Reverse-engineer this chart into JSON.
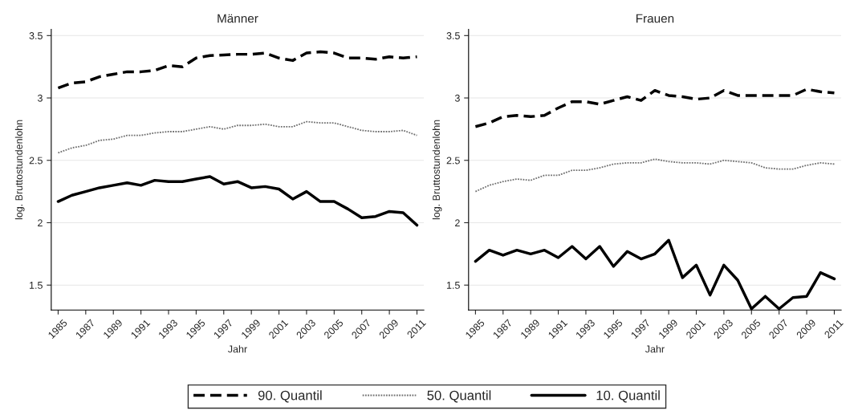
{
  "chart_data": [
    {
      "type": "line",
      "title": "Männer",
      "xlabel": "Jahr",
      "ylabel": "log. Bruttostundenlohn",
      "x": [
        1985,
        1986,
        1987,
        1988,
        1989,
        1990,
        1991,
        1992,
        1993,
        1994,
        1995,
        1996,
        1997,
        1998,
        1999,
        2000,
        2001,
        2002,
        2003,
        2004,
        2005,
        2006,
        2007,
        2008,
        2009,
        2010,
        2011
      ],
      "xlim": [
        1984.5,
        2011.5
      ],
      "xticks": [
        1985,
        1987,
        1989,
        1991,
        1993,
        1995,
        1997,
        1999,
        2001,
        2003,
        2005,
        2007,
        2009,
        2011
      ],
      "ylim": [
        1.3,
        3.55
      ],
      "yticks": [
        1.5,
        2,
        2.5,
        3,
        3.5
      ],
      "grid": "y",
      "legend": "bottom",
      "series": [
        {
          "name": "90. Quantil",
          "color": "#000000",
          "line_style": "dashed",
          "values": [
            3.08,
            3.12,
            3.13,
            3.17,
            3.19,
            3.21,
            3.21,
            3.22,
            3.26,
            3.25,
            3.32,
            3.34,
            3.345,
            3.35,
            3.35,
            3.36,
            3.32,
            3.3,
            3.36,
            3.37,
            3.36,
            3.32,
            3.32,
            3.31,
            3.33,
            3.32,
            3.33
          ]
        },
        {
          "name": "50. Quantil",
          "color": "#707070",
          "line_style": "dotted",
          "values": [
            2.56,
            2.6,
            2.62,
            2.66,
            2.67,
            2.7,
            2.7,
            2.72,
            2.73,
            2.73,
            2.75,
            2.77,
            2.75,
            2.78,
            2.78,
            2.79,
            2.77,
            2.77,
            2.81,
            2.8,
            2.8,
            2.77,
            2.74,
            2.73,
            2.73,
            2.74,
            2.7
          ]
        },
        {
          "name": "10. Quantil",
          "color": "#000000",
          "line_style": "solid",
          "values": [
            2.17,
            2.22,
            2.25,
            2.28,
            2.3,
            2.32,
            2.3,
            2.34,
            2.33,
            2.33,
            2.35,
            2.37,
            2.31,
            2.33,
            2.28,
            2.29,
            2.27,
            2.19,
            2.25,
            2.17,
            2.17,
            2.11,
            2.04,
            2.05,
            2.09,
            2.08,
            1.98
          ]
        }
      ]
    },
    {
      "type": "line",
      "title": "Frauen",
      "xlabel": "Jahr",
      "ylabel": "log. Bruttostundenlohn",
      "x": [
        1985,
        1986,
        1987,
        1988,
        1989,
        1990,
        1991,
        1992,
        1993,
        1994,
        1995,
        1996,
        1997,
        1998,
        1999,
        2000,
        2001,
        2002,
        2003,
        2004,
        2005,
        2006,
        2007,
        2008,
        2009,
        2010,
        2011
      ],
      "xlim": [
        1984.5,
        2011.5
      ],
      "xticks": [
        1985,
        1987,
        1989,
        1991,
        1993,
        1995,
        1997,
        1999,
        2001,
        2003,
        2005,
        2007,
        2009,
        2011
      ],
      "ylim": [
        1.3,
        3.55
      ],
      "yticks": [
        1.5,
        2,
        2.5,
        3,
        3.5
      ],
      "grid": "y",
      "series": [
        {
          "color": "#000000",
          "line_style": "dashed",
          "values": [
            2.77,
            2.8,
            2.85,
            2.86,
            2.85,
            2.86,
            2.92,
            2.97,
            2.97,
            2.95,
            2.98,
            3.01,
            2.98,
            3.06,
            3.02,
            3.01,
            2.99,
            3.0,
            3.06,
            3.02,
            3.02,
            3.02,
            3.02,
            3.02,
            3.07,
            3.05,
            3.04
          ]
        },
        {
          "color": "#707070",
          "line_style": "dotted",
          "values": [
            2.25,
            2.3,
            2.33,
            2.35,
            2.34,
            2.38,
            2.38,
            2.42,
            2.42,
            2.44,
            2.47,
            2.48,
            2.48,
            2.51,
            2.49,
            2.48,
            2.48,
            2.47,
            2.5,
            2.49,
            2.48,
            2.44,
            2.43,
            2.43,
            2.46,
            2.48,
            2.47
          ]
        },
        {
          "color": "#000000",
          "line_style": "solid",
          "values": [
            1.69,
            1.78,
            1.74,
            1.78,
            1.75,
            1.78,
            1.72,
            1.81,
            1.71,
            1.81,
            1.65,
            1.77,
            1.71,
            1.75,
            1.86,
            1.56,
            1.66,
            1.42,
            1.66,
            1.54,
            1.31,
            1.41,
            1.31,
            1.4,
            1.41,
            1.6,
            1.55
          ]
        }
      ]
    }
  ]
}
